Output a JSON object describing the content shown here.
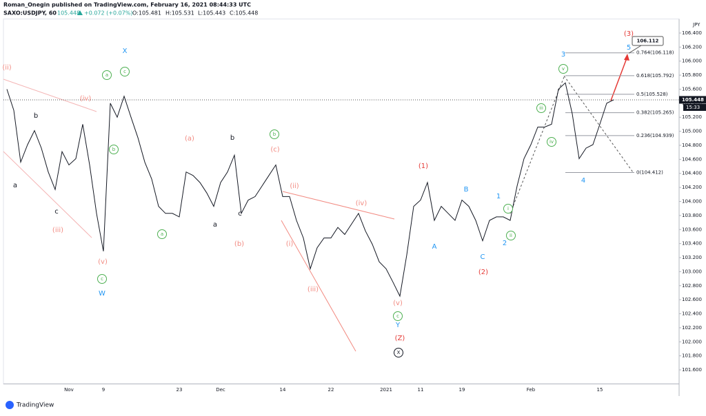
{
  "header": {
    "publisher": "Roman_Onegin published on TradingView.com, February 16, 2021 08:44:33 UTC",
    "symbol": "SAXO:USDJPY, 60",
    "last": "105.448",
    "change": "+0.072 (+0.07%)",
    "ohlc": [
      "O:105.481",
      "H:105.531",
      "L:105.443",
      "C:105.448"
    ]
  },
  "chart_data": {
    "type": "line",
    "categories": [
      null,
      null,
      null,
      null,
      null,
      null,
      null,
      null,
      null,
      "Nov",
      null,
      null,
      null,
      null,
      "9",
      null,
      null,
      null,
      null,
      null,
      null,
      null,
      null,
      null,
      null,
      "23",
      null,
      null,
      null,
      null,
      null,
      "Dec",
      null,
      null,
      null,
      null,
      null,
      null,
      null,
      null,
      "14",
      null,
      null,
      null,
      null,
      null,
      null,
      "22",
      null,
      null,
      null,
      null,
      null,
      null,
      null,
      "2021",
      null,
      null,
      null,
      null,
      "11",
      null,
      null,
      null,
      null,
      null,
      "19",
      null,
      null,
      null,
      null,
      null,
      null,
      null,
      null,
      null,
      "Feb",
      null,
      null,
      null,
      null,
      null,
      null,
      null,
      null,
      null,
      "15",
      null,
      null,
      null,
      null,
      null,
      null,
      null,
      null,
      null,
      null,
      null
    ],
    "values": [
      105.6,
      105.3,
      104.56,
      104.81,
      105.01,
      104.76,
      104.42,
      104.17,
      104.71,
      104.52,
      104.61,
      105.1,
      104.52,
      103.83,
      103.29,
      105.4,
      105.2,
      105.5,
      105.2,
      104.91,
      104.56,
      104.32,
      103.93,
      103.83,
      103.83,
      103.78,
      104.42,
      104.37,
      104.27,
      104.12,
      103.93,
      104.27,
      104.42,
      104.66,
      103.83,
      104.02,
      104.07,
      104.22,
      104.37,
      104.52,
      104.07,
      104.07,
      103.73,
      103.48,
      103.04,
      103.34,
      103.48,
      103.48,
      103.63,
      103.53,
      103.68,
      103.83,
      103.58,
      103.39,
      103.14,
      103.04,
      102.85,
      102.65,
      103.24,
      103.93,
      104.02,
      104.27,
      103.73,
      103.93,
      103.83,
      103.73,
      104.02,
      103.93,
      103.73,
      103.44,
      103.73,
      103.78,
      103.78,
      103.73,
      104.22,
      104.61,
      104.81,
      105.06,
      105.06,
      105.1,
      105.6,
      105.69,
      105.25,
      104.61,
      104.76,
      104.81,
      105.1,
      105.4,
      105.448,
      null,
      null,
      null,
      null,
      null,
      null,
      null,
      null,
      null
    ],
    "color": "#131722",
    "ylim": [
      101.4,
      106.6
    ],
    "yticks": [
      {
        "value": 101.6,
        "label": "101.600"
      },
      {
        "value": 101.8,
        "label": "101.800"
      },
      {
        "value": 102.0,
        "label": "102.000"
      },
      {
        "value": 102.2,
        "label": "102.200"
      },
      {
        "value": 102.4,
        "label": "102.400"
      },
      {
        "value": 102.6,
        "label": "102.600"
      },
      {
        "value": 102.8,
        "label": "102.800"
      },
      {
        "value": 103.0,
        "label": "103.000"
      },
      {
        "value": 103.2,
        "label": "103.200"
      },
      {
        "value": 103.4,
        "label": "103.400"
      },
      {
        "value": 103.6,
        "label": "103.600"
      },
      {
        "value": 103.8,
        "label": "103.800"
      },
      {
        "value": 104.0,
        "label": "104.000"
      },
      {
        "value": 104.2,
        "label": "104.200"
      },
      {
        "value": 104.4,
        "label": "104.400"
      },
      {
        "value": 104.6,
        "label": "104.600"
      },
      {
        "value": 104.8,
        "label": "104.800"
      },
      {
        "value": 105.0,
        "label": "105.000"
      },
      {
        "value": 105.2,
        "label": "105.200"
      },
      {
        "value": 105.4,
        "label": "105.400"
      },
      {
        "value": 105.6,
        "label": "105.600"
      },
      {
        "value": 105.8,
        "label": "105.800"
      },
      {
        "value": 106.0,
        "label": "106.000"
      },
      {
        "value": 106.2,
        "label": "106.200"
      },
      {
        "value": 106.4,
        "label": "106.400"
      }
    ],
    "y_unit": "JPY",
    "last_price": {
      "value": 105.448,
      "label": "105.448"
    },
    "countdown": "15:33",
    "target": {
      "value": 106.112,
      "label": "106.112"
    },
    "fib_levels": [
      {
        "value": 106.118,
        "label": "0.764(106.118)"
      },
      {
        "value": 105.792,
        "label": "0.618(105.792)"
      },
      {
        "value": 105.528,
        "label": "0.5(105.528)"
      },
      {
        "value": 105.265,
        "label": "0.382(105.265)"
      },
      {
        "value": 104.939,
        "label": "0.236(104.939)"
      },
      {
        "value": 104.412,
        "label": "0(104.412)"
      }
    ],
    "annotation_groups": [
      {
        "color": "#f28b82",
        "circled": false,
        "labels": [
          "(ii)",
          "(iv)",
          "(iii)",
          "(v)",
          "(a)",
          "(c)",
          "(b)",
          "(ii)",
          "(iv)",
          "(i)",
          "(iii)",
          "(v)"
        ]
      },
      {
        "color": "#131722",
        "circled": false,
        "labels": [
          "b",
          "a",
          "c",
          "b",
          "a",
          "c"
        ]
      },
      {
        "color": "#4caf50",
        "circled": true,
        "labels": [
          "a",
          "c",
          "b",
          "a",
          "b",
          "c",
          "c",
          "v",
          "iii",
          "iv",
          "i",
          "ii"
        ]
      },
      {
        "color": "#2196f3",
        "circled": false,
        "labels": [
          "X",
          "W",
          "Y",
          "A",
          "B",
          "C",
          "1",
          "2",
          "3",
          "4",
          "5"
        ]
      },
      {
        "color": "#e53935",
        "circled": false,
        "labels": [
          "(1)",
          "(2)",
          "(3)",
          "(Z)"
        ]
      },
      {
        "color": "#131722",
        "circled": true,
        "labels": [
          "X"
        ]
      }
    ]
  },
  "footer": {
    "brand": "TradingView"
  }
}
